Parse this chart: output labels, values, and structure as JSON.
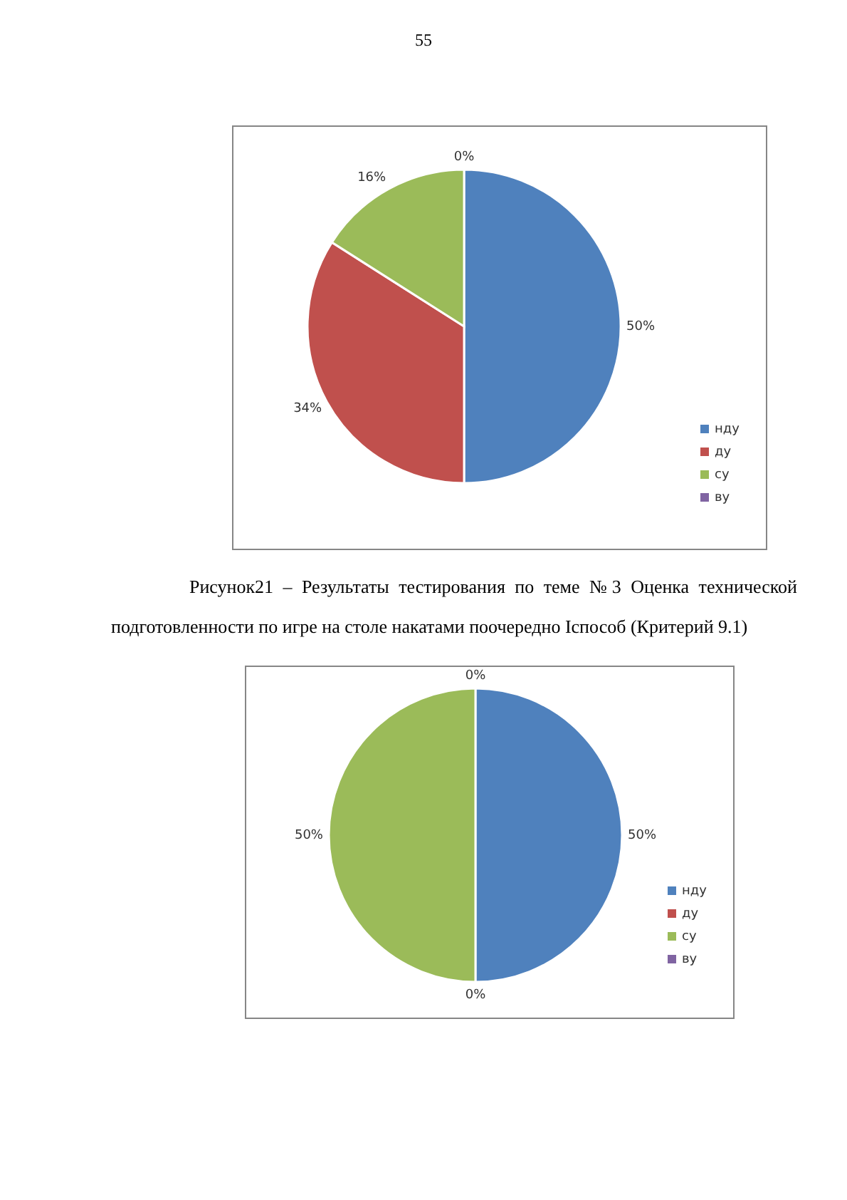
{
  "chart_data": [
    {
      "type": "pie",
      "categories": [
        "нду",
        "ду",
        "су",
        "ву"
      ],
      "values": [
        50,
        34,
        16,
        0
      ],
      "colors": [
        "#4f81bd",
        "#c0504d",
        "#9bbb59",
        "#8064a2"
      ],
      "value_labels": [
        "50%",
        "34%",
        "16%",
        "0%"
      ],
      "legend": "right",
      "annotations": [
        "55",
        "Рисунок21 – Результаты тестирования по теме №3 Оценка технической подготовленности по игре на столе накатами поочередно Iспособ (Критерий 9.1)"
      ]
    },
    {
      "type": "pie",
      "categories": [
        "нду",
        "ду",
        "су",
        "ву"
      ],
      "values": [
        50,
        0,
        50,
        0
      ],
      "colors": [
        "#4f81bd",
        "#c0504d",
        "#9bbb59",
        "#8064a2"
      ],
      "value_labels": [
        "50%",
        "0%",
        "50%",
        "0%"
      ],
      "legend": "right"
    }
  ]
}
